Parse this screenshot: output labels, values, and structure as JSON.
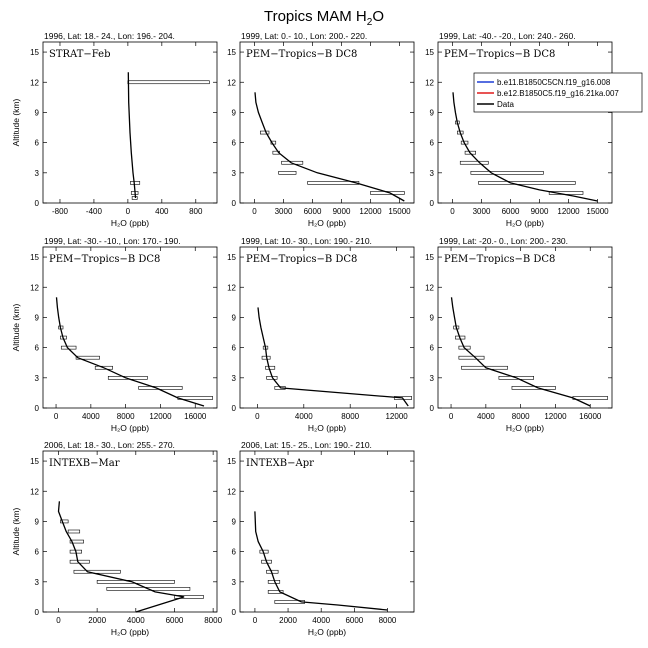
{
  "figure": {
    "title": "Tropics MAM H",
    "title_sub": "2",
    "title_tail": "O"
  },
  "legend": {
    "entries": [
      {
        "label": "b.e11.B1850C5CN.f19_g16.008",
        "color": "#1f3fd6"
      },
      {
        "label": "b.e12.B1850C5.f19_g16.21ka.007",
        "color": "#e01b1b"
      },
      {
        "label": "Data",
        "color": "#000000"
      }
    ]
  },
  "chart_data": [
    {
      "type": "line",
      "header": "1996, Lat: 18.- 24., Lon: 196.- 204.",
      "label": "STRAT−Feb",
      "xlabel": "H₂O (ppb)",
      "ylabel": "Altitude (km)",
      "xlim": [
        -1000,
        1050
      ],
      "ylim": [
        0,
        16
      ],
      "xticks": [
        -800,
        -400,
        0,
        400,
        800
      ],
      "yticks": [
        0,
        3,
        6,
        9,
        12,
        15
      ],
      "profile": {
        "x": [
          90,
          85,
          75,
          60,
          40,
          25,
          10,
          5
        ],
        "y": [
          0.5,
          1,
          2,
          3,
          5,
          7,
          10,
          13
        ]
      },
      "errors": [
        {
          "y": 12,
          "lo": 0,
          "hi": 960
        },
        {
          "y": 2,
          "lo": 30,
          "hi": 140
        },
        {
          "y": 1,
          "lo": 40,
          "hi": 120
        },
        {
          "y": 0.5,
          "lo": 50,
          "hi": 110
        }
      ]
    },
    {
      "type": "line",
      "header": "1999, Lat: 0.- 10., Lon: 200.- 220.",
      "label": "PEM−Tropics−B DC8",
      "xlabel": "H₂O (ppb)",
      "ylabel": "",
      "xlim": [
        -1500,
        16500
      ],
      "ylim": [
        0,
        16
      ],
      "xticks": [
        0,
        3000,
        6000,
        9000,
        12000,
        15000
      ],
      "yticks": [
        0,
        3,
        6,
        9,
        12,
        15
      ],
      "profile": {
        "x": [
          15500,
          14000,
          10500,
          6500,
          3800,
          2500,
          1800,
          1200,
          800,
          400,
          150,
          50
        ],
        "y": [
          0.2,
          1,
          2,
          3,
          4,
          5,
          6,
          7,
          8,
          9,
          10,
          11
        ]
      },
      "errors": [
        {
          "y": 1,
          "lo": 12000,
          "hi": 15500
        },
        {
          "y": 2,
          "lo": 5500,
          "hi": 10800
        },
        {
          "y": 3,
          "lo": 2500,
          "hi": 4300
        },
        {
          "y": 4,
          "lo": 2800,
          "hi": 5000
        },
        {
          "y": 5,
          "lo": 1900,
          "hi": 2600
        },
        {
          "y": 6,
          "lo": 1700,
          "hi": 2200
        },
        {
          "y": 7,
          "lo": 600,
          "hi": 1500
        }
      ]
    },
    {
      "type": "line",
      "header": "1999, Lat: -40.- -20., Lon: 240.- 260.",
      "label": "PEM−Tropics−B DC8",
      "xlabel": "H₂O (ppb)",
      "ylabel": "",
      "xlim": [
        -1500,
        16500
      ],
      "ylim": [
        0,
        16
      ],
      "xticks": [
        0,
        3000,
        6000,
        9000,
        12000,
        15000
      ],
      "yticks": [
        0,
        3,
        6,
        9,
        12,
        15
      ],
      "profile": {
        "x": [
          15000,
          12500,
          9000,
          6000,
          4000,
          2800,
          1800,
          1200,
          800,
          500,
          300,
          150,
          50
        ],
        "y": [
          0.2,
          0.7,
          1.3,
          2,
          3,
          4,
          5,
          6,
          7,
          8,
          9,
          10,
          11
        ]
      },
      "errors": [
        {
          "y": 1,
          "lo": 10000,
          "hi": 13500
        },
        {
          "y": 2,
          "lo": 2700,
          "hi": 12700
        },
        {
          "y": 3,
          "lo": 1900,
          "hi": 9400
        },
        {
          "y": 4,
          "lo": 800,
          "hi": 3700
        },
        {
          "y": 5,
          "lo": 1300,
          "hi": 2400
        },
        {
          "y": 6,
          "lo": 900,
          "hi": 1600
        },
        {
          "y": 7,
          "lo": 500,
          "hi": 1100
        },
        {
          "y": 8,
          "lo": 300,
          "hi": 700
        }
      ]
    },
    {
      "type": "line",
      "header": "1999, Lat: -30.- -10., Lon: 170.- 190.",
      "label": "PEM−Tropics−B DC8",
      "xlabel": "H₂O (ppb)",
      "ylabel": "Altitude (km)",
      "xlim": [
        -1500,
        18500
      ],
      "ylim": [
        0,
        16
      ],
      "xticks": [
        0,
        4000,
        8000,
        12000,
        16000
      ],
      "yticks": [
        0,
        3,
        6,
        9,
        12,
        15
      ],
      "profile": {
        "x": [
          17000,
          14000,
          11500,
          8000,
          5500,
          2500,
          1300,
          800,
          500,
          300,
          150,
          50
        ],
        "y": [
          0.2,
          1,
          2,
          3,
          4,
          5,
          6,
          7,
          8,
          9,
          10,
          11
        ]
      },
      "errors": [
        {
          "y": 1,
          "lo": 14000,
          "hi": 18000
        },
        {
          "y": 2,
          "lo": 9500,
          "hi": 14500
        },
        {
          "y": 3,
          "lo": 6000,
          "hi": 10500
        },
        {
          "y": 4,
          "lo": 4500,
          "hi": 6500
        },
        {
          "y": 5,
          "lo": 2300,
          "hi": 5000
        },
        {
          "y": 6,
          "lo": 600,
          "hi": 2300
        },
        {
          "y": 7,
          "lo": 500,
          "hi": 1200
        },
        {
          "y": 8,
          "lo": 300,
          "hi": 800
        }
      ]
    },
    {
      "type": "line",
      "header": "1999, Lat: 10.- 30., Lon: 190.- 210.",
      "label": "PEM−Tropics−B DC8",
      "xlabel": "H₂O (ppb)",
      "ylabel": "",
      "xlim": [
        -1500,
        13500
      ],
      "ylim": [
        0,
        16
      ],
      "xticks": [
        0,
        4000,
        8000,
        12000
      ],
      "yticks": [
        0,
        3,
        6,
        9,
        12,
        15
      ],
      "profile": {
        "x": [
          13000,
          12500,
          2000,
          1300,
          1000,
          800,
          700,
          500,
          300,
          150,
          50
        ],
        "y": [
          0.2,
          1,
          2,
          3,
          4,
          5,
          6,
          7,
          8,
          9,
          10
        ]
      },
      "errors": [
        {
          "y": 1,
          "lo": 11800,
          "hi": 13300
        },
        {
          "y": 2,
          "lo": 1500,
          "hi": 2400
        },
        {
          "y": 3,
          "lo": 800,
          "hi": 1700
        },
        {
          "y": 4,
          "lo": 700,
          "hi": 1500
        },
        {
          "y": 5,
          "lo": 400,
          "hi": 1100
        },
        {
          "y": 6,
          "lo": 500,
          "hi": 900
        }
      ]
    },
    {
      "type": "line",
      "header": "1999, Lat: -20.- 0., Lon: 200.- 230.",
      "label": "PEM−Tropics−B DC8",
      "xlabel": "H₂O (ppb)",
      "ylabel": "",
      "xlim": [
        -1500,
        18500
      ],
      "ylim": [
        0,
        16
      ],
      "xticks": [
        0,
        4000,
        8000,
        12000,
        16000
      ],
      "yticks": [
        0,
        3,
        6,
        9,
        12,
        15
      ],
      "profile": {
        "x": [
          16000,
          14000,
          10000,
          7500,
          4000,
          2800,
          1500,
          1000,
          600,
          400,
          200,
          50
        ],
        "y": [
          0.2,
          1,
          2,
          3,
          4,
          5,
          6,
          7,
          8,
          9,
          10,
          11
        ]
      },
      "errors": [
        {
          "y": 1,
          "lo": 14000,
          "hi": 18000
        },
        {
          "y": 2,
          "lo": 7000,
          "hi": 12000
        },
        {
          "y": 3,
          "lo": 5500,
          "hi": 9500
        },
        {
          "y": 4,
          "lo": 1200,
          "hi": 6500
        },
        {
          "y": 5,
          "lo": 900,
          "hi": 3800
        },
        {
          "y": 6,
          "lo": 900,
          "hi": 2200
        },
        {
          "y": 7,
          "lo": 500,
          "hi": 1600
        },
        {
          "y": 8,
          "lo": 300,
          "hi": 900
        }
      ]
    },
    {
      "type": "line",
      "header": "2006, Lat: 18.- 30., Lon: 255.- 270.",
      "label": "INTEXB−Mar",
      "xlabel": "H₂O (ppb)",
      "ylabel": "Altitude (km)",
      "xlim": [
        -800,
        8200
      ],
      "ylim": [
        0,
        16
      ],
      "xticks": [
        0,
        2000,
        4000,
        6000,
        8000
      ],
      "yticks": [
        0,
        3,
        6,
        9,
        12,
        15
      ],
      "profile": {
        "x": [
          4000,
          6500,
          5000,
          3800,
          1500,
          1000,
          900,
          700,
          400,
          200,
          0,
          50
        ],
        "y": [
          0,
          1.5,
          2,
          3,
          4,
          5,
          6,
          7,
          8,
          9,
          10,
          11
        ]
      },
      "errors": [
        {
          "y": 1.5,
          "lo": 6000,
          "hi": 7500
        },
        {
          "y": 2.3,
          "lo": 2500,
          "hi": 6800
        },
        {
          "y": 3,
          "lo": 2000,
          "hi": 6000
        },
        {
          "y": 4,
          "lo": 800,
          "hi": 3200
        },
        {
          "y": 5,
          "lo": 600,
          "hi": 1600
        },
        {
          "y": 6,
          "lo": 600,
          "hi": 1200
        },
        {
          "y": 7,
          "lo": 600,
          "hi": 1300
        },
        {
          "y": 8,
          "lo": 500,
          "hi": 1100
        },
        {
          "y": 9,
          "lo": 100,
          "hi": 500
        }
      ]
    },
    {
      "type": "line",
      "header": "2006, Lat: 15.- 25., Lon: 190.- 210.",
      "label": "INTEXB−Apr",
      "xlabel": "H₂O (ppb)",
      "ylabel": "",
      "xlim": [
        -900,
        9600
      ],
      "ylim": [
        0,
        16
      ],
      "xticks": [
        0,
        2000,
        4000,
        6000,
        8000
      ],
      "yticks": [
        0,
        3,
        6,
        9,
        12,
        15
      ],
      "profile": {
        "x": [
          8000,
          5000,
          2800,
          1500,
          1200,
          1000,
          700,
          500,
          200,
          50,
          0
        ],
        "y": [
          0.2,
          0.7,
          1,
          2,
          3,
          4,
          5,
          6,
          7,
          8,
          10
        ]
      },
      "errors": [
        {
          "y": 1,
          "lo": 1200,
          "hi": 3000
        },
        {
          "y": 2,
          "lo": 800,
          "hi": 1700
        },
        {
          "y": 3,
          "lo": 800,
          "hi": 1500
        },
        {
          "y": 4,
          "lo": 700,
          "hi": 1400
        },
        {
          "y": 5,
          "lo": 400,
          "hi": 1000
        },
        {
          "y": 6,
          "lo": 300,
          "hi": 800
        }
      ]
    }
  ]
}
